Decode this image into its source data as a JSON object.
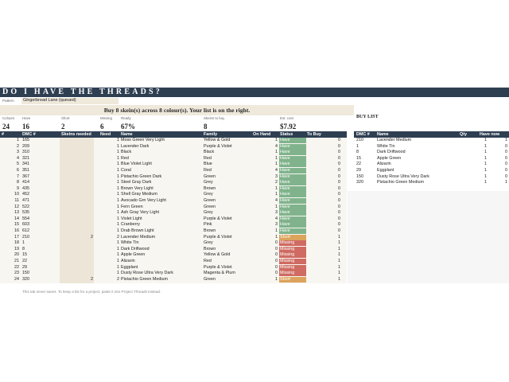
{
  "header": {
    "title": "DO I HAVE THE THREADS?",
    "pattern_label": "Pattern",
    "pattern": "Gingerbread Lane (queued)"
  },
  "summary": "Buy 8 skein(s) across 8 colour(s). Your list is on the right.",
  "stats": [
    {
      "label": "Colours",
      "value": "24"
    },
    {
      "label": "Have",
      "value": "16"
    },
    {
      "label": "Short",
      "value": "2"
    },
    {
      "label": "Missing",
      "value": "6"
    },
    {
      "label": "Ready",
      "value": "67%"
    },
    {
      "label": "Skeins to buy",
      "value": "8"
    },
    {
      "label": "Est. cost",
      "value": "$7.92"
    }
  ],
  "table": {
    "columns": [
      "#",
      "DMC #",
      "Skeins needed",
      "Need",
      "Name",
      "Family",
      "On Hand",
      "Status",
      "To Buy"
    ],
    "rows": [
      [
        1,
        165,
        null,
        1,
        "Moss Green Very Light",
        "Yellow & Gold",
        1,
        "Have",
        0
      ],
      [
        2,
        209,
        null,
        1,
        "Lavender Dark",
        "Purple & Violet",
        4,
        "Have",
        0
      ],
      [
        3,
        310,
        null,
        1,
        "Black",
        "Black",
        1,
        "Have",
        0
      ],
      [
        4,
        321,
        null,
        1,
        "Red",
        "Red",
        1,
        "Have",
        0
      ],
      [
        5,
        341,
        null,
        1,
        "Blue Violet Light",
        "Blue",
        1,
        "Have",
        0
      ],
      [
        6,
        351,
        null,
        1,
        "Coral",
        "Red",
        4,
        "Have",
        0
      ],
      [
        7,
        367,
        null,
        1,
        "Pistachio Green Dark",
        "Green",
        3,
        "Have",
        0
      ],
      [
        8,
        414,
        null,
        1,
        "Steel Gray Dark",
        "Grey",
        2,
        "Have",
        0
      ],
      [
        9,
        435,
        null,
        1,
        "Brown Very Light",
        "Brown",
        1,
        "Have",
        0
      ],
      [
        10,
        452,
        null,
        1,
        "Shell Gray Medium",
        "Grey",
        1,
        "Have",
        0
      ],
      [
        11,
        471,
        null,
        1,
        "Avocado Grn Very Light",
        "Green",
        4,
        "Have",
        0
      ],
      [
        12,
        522,
        null,
        1,
        "Fern Green",
        "Green",
        1,
        "Have",
        0
      ],
      [
        13,
        535,
        null,
        1,
        "Ash Gray Very Light",
        "Grey",
        3,
        "Have",
        0
      ],
      [
        14,
        554,
        null,
        1,
        "Violet Light",
        "Purple & Violet",
        4,
        "Have",
        0
      ],
      [
        15,
        603,
        null,
        1,
        "Cranberry",
        "Pink",
        3,
        "Have",
        0
      ],
      [
        16,
        612,
        null,
        1,
        "Drab Brown Light",
        "Brown",
        1,
        "Have",
        0
      ],
      [
        17,
        210,
        2,
        2,
        "Lavender Medium",
        "Purple & Violet",
        1,
        "Short",
        1
      ],
      [
        18,
        1,
        null,
        1,
        "White Tin",
        "Grey",
        0,
        "Missing",
        1
      ],
      [
        19,
        8,
        null,
        1,
        "Dark Driftwood",
        "Brown",
        0,
        "Missing",
        1
      ],
      [
        20,
        15,
        null,
        1,
        "Apple Green",
        "Yellow & Gold",
        0,
        "Missing",
        1
      ],
      [
        21,
        22,
        null,
        1,
        "Alizarin",
        "Red",
        0,
        "Missing",
        1
      ],
      [
        22,
        29,
        null,
        1,
        "Eggplant",
        "Purple & Violet",
        0,
        "Missing",
        1
      ],
      [
        23,
        150,
        null,
        1,
        "Dusty Rose Ultra Very Dark",
        "Magenta & Plum",
        0,
        "Missing",
        1
      ],
      [
        24,
        320,
        2,
        2,
        "Pistachio Green Medium",
        "Green",
        1,
        "Short",
        1
      ]
    ]
  },
  "buy_list": {
    "title": "BUY LIST",
    "columns": [
      "DMC #",
      "Name",
      "Qty",
      "Have now"
    ],
    "rows": [
      [
        210,
        "Lavender Medium",
        1,
        1
      ],
      [
        1,
        "White Tin",
        1,
        0
      ],
      [
        8,
        "Dark Driftwood",
        1,
        0
      ],
      [
        15,
        "Apple Green",
        1,
        0
      ],
      [
        22,
        "Alizarin",
        1,
        0
      ],
      [
        29,
        "Eggplant",
        1,
        0
      ],
      [
        150,
        "Dusty Rose Ultra Very Dark",
        1,
        0
      ],
      [
        320,
        "Pistachio Green Medium",
        1,
        1
      ]
    ]
  },
  "note": "This tab never saves. To keep a list for a project, paste it into Project Threads instead."
}
